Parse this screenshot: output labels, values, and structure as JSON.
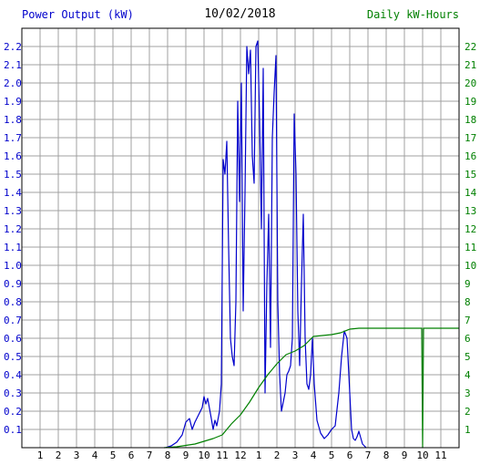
{
  "header": {
    "left_title": "Power Output (kW)",
    "date": "10/02/2018",
    "right_title": "Daily kW-Hours"
  },
  "colors": {
    "power": "#0000cc",
    "energy": "#008000",
    "grid": "#a0a0a0",
    "axis_text": "#000000"
  },
  "chart_data": {
    "type": "line",
    "x_ticks": [
      "1",
      "2",
      "3",
      "4",
      "5",
      "6",
      "7",
      "8",
      "9",
      "10",
      "11",
      "12",
      "1",
      "2",
      "3",
      "4",
      "5",
      "6",
      "7",
      "8",
      "9",
      "10",
      "11"
    ],
    "x_range": [
      0,
      24
    ],
    "y_left": {
      "range": [
        0,
        2.3
      ],
      "ticks": [
        "0.1",
        "0.2",
        "0.3",
        "0.4",
        "0.5",
        "0.6",
        "0.7",
        "0.8",
        "0.9",
        "1.0",
        "1.1",
        "1.2",
        "1.3",
        "1.4",
        "1.5",
        "1.6",
        "1.7",
        "1.8",
        "1.9",
        "2.0",
        "2.1",
        "2.2"
      ]
    },
    "y_right": {
      "range": [
        0,
        23
      ],
      "ticks": [
        "1",
        "2",
        "3",
        "4",
        "5",
        "6",
        "7",
        "8",
        "9",
        "10",
        "11",
        "12",
        "13",
        "14",
        "15",
        "16",
        "17",
        "18",
        "19",
        "20",
        "21",
        "22"
      ]
    },
    "grid": true,
    "series": [
      {
        "axis": "left",
        "color": "#0000cc",
        "x": [
          7.9,
          8.2,
          8.5,
          8.8,
          9.0,
          9.2,
          9.35,
          9.5,
          9.7,
          9.9,
          10.0,
          10.1,
          10.2,
          10.4,
          10.5,
          10.6,
          10.7,
          10.85,
          10.95,
          11.05,
          11.15,
          11.25,
          11.35,
          11.45,
          11.55,
          11.65,
          11.75,
          11.85,
          11.95,
          12.05,
          12.15,
          12.25,
          12.35,
          12.45,
          12.55,
          12.65,
          12.75,
          12.85,
          12.95,
          13.05,
          13.15,
          13.25,
          13.35,
          13.45,
          13.55,
          13.65,
          13.75,
          13.85,
          13.95,
          14.05,
          14.15,
          14.25,
          14.35,
          14.45,
          14.55,
          14.65,
          14.75,
          14.85,
          14.95,
          15.05,
          15.15,
          15.25,
          15.35,
          15.45,
          15.55,
          15.65,
          15.75,
          15.85,
          15.95,
          16.05,
          16.2,
          16.4,
          16.6,
          16.8,
          17.0,
          17.2,
          17.4,
          17.55,
          17.7,
          17.85,
          18.0,
          18.1,
          18.2,
          18.3,
          18.4,
          18.5,
          18.7,
          18.9
        ],
        "y": [
          0.0,
          0.01,
          0.03,
          0.07,
          0.14,
          0.16,
          0.1,
          0.14,
          0.18,
          0.22,
          0.28,
          0.24,
          0.27,
          0.16,
          0.1,
          0.15,
          0.12,
          0.2,
          0.35,
          1.58,
          1.5,
          1.68,
          1.1,
          0.6,
          0.5,
          0.45,
          0.8,
          1.9,
          1.35,
          2.0,
          0.75,
          1.4,
          2.2,
          2.05,
          2.18,
          1.6,
          1.45,
          2.2,
          2.23,
          1.8,
          1.2,
          2.08,
          0.3,
          0.9,
          1.28,
          0.55,
          1.7,
          1.95,
          2.15,
          0.8,
          0.4,
          0.2,
          0.25,
          0.3,
          0.4,
          0.42,
          0.45,
          0.6,
          1.83,
          1.5,
          0.75,
          0.45,
          0.9,
          1.28,
          0.6,
          0.35,
          0.32,
          0.4,
          0.6,
          0.35,
          0.15,
          0.08,
          0.05,
          0.07,
          0.1,
          0.12,
          0.3,
          0.5,
          0.64,
          0.6,
          0.3,
          0.1,
          0.05,
          0.04,
          0.06,
          0.09,
          0.02,
          0.0
        ]
      },
      {
        "axis": "right",
        "color": "#008000",
        "x": [
          7.8,
          8.5,
          9.5,
          10.5,
          11.0,
          11.5,
          12.0,
          12.5,
          13.0,
          13.5,
          14.0,
          14.5,
          15.0,
          15.5,
          16.0,
          16.5,
          17.0,
          17.5,
          18.0,
          18.5,
          19.0,
          20.0,
          21.0,
          21.95,
          22.0,
          22.05,
          22.1,
          23.0,
          24.0
        ],
        "y": [
          0.0,
          0.05,
          0.2,
          0.5,
          0.7,
          1.3,
          1.8,
          2.5,
          3.3,
          4.0,
          4.6,
          5.1,
          5.3,
          5.6,
          6.1,
          6.15,
          6.2,
          6.3,
          6.5,
          6.55,
          6.55,
          6.55,
          6.55,
          6.55,
          0.0,
          6.55,
          6.55,
          6.55,
          6.55
        ]
      }
    ]
  }
}
